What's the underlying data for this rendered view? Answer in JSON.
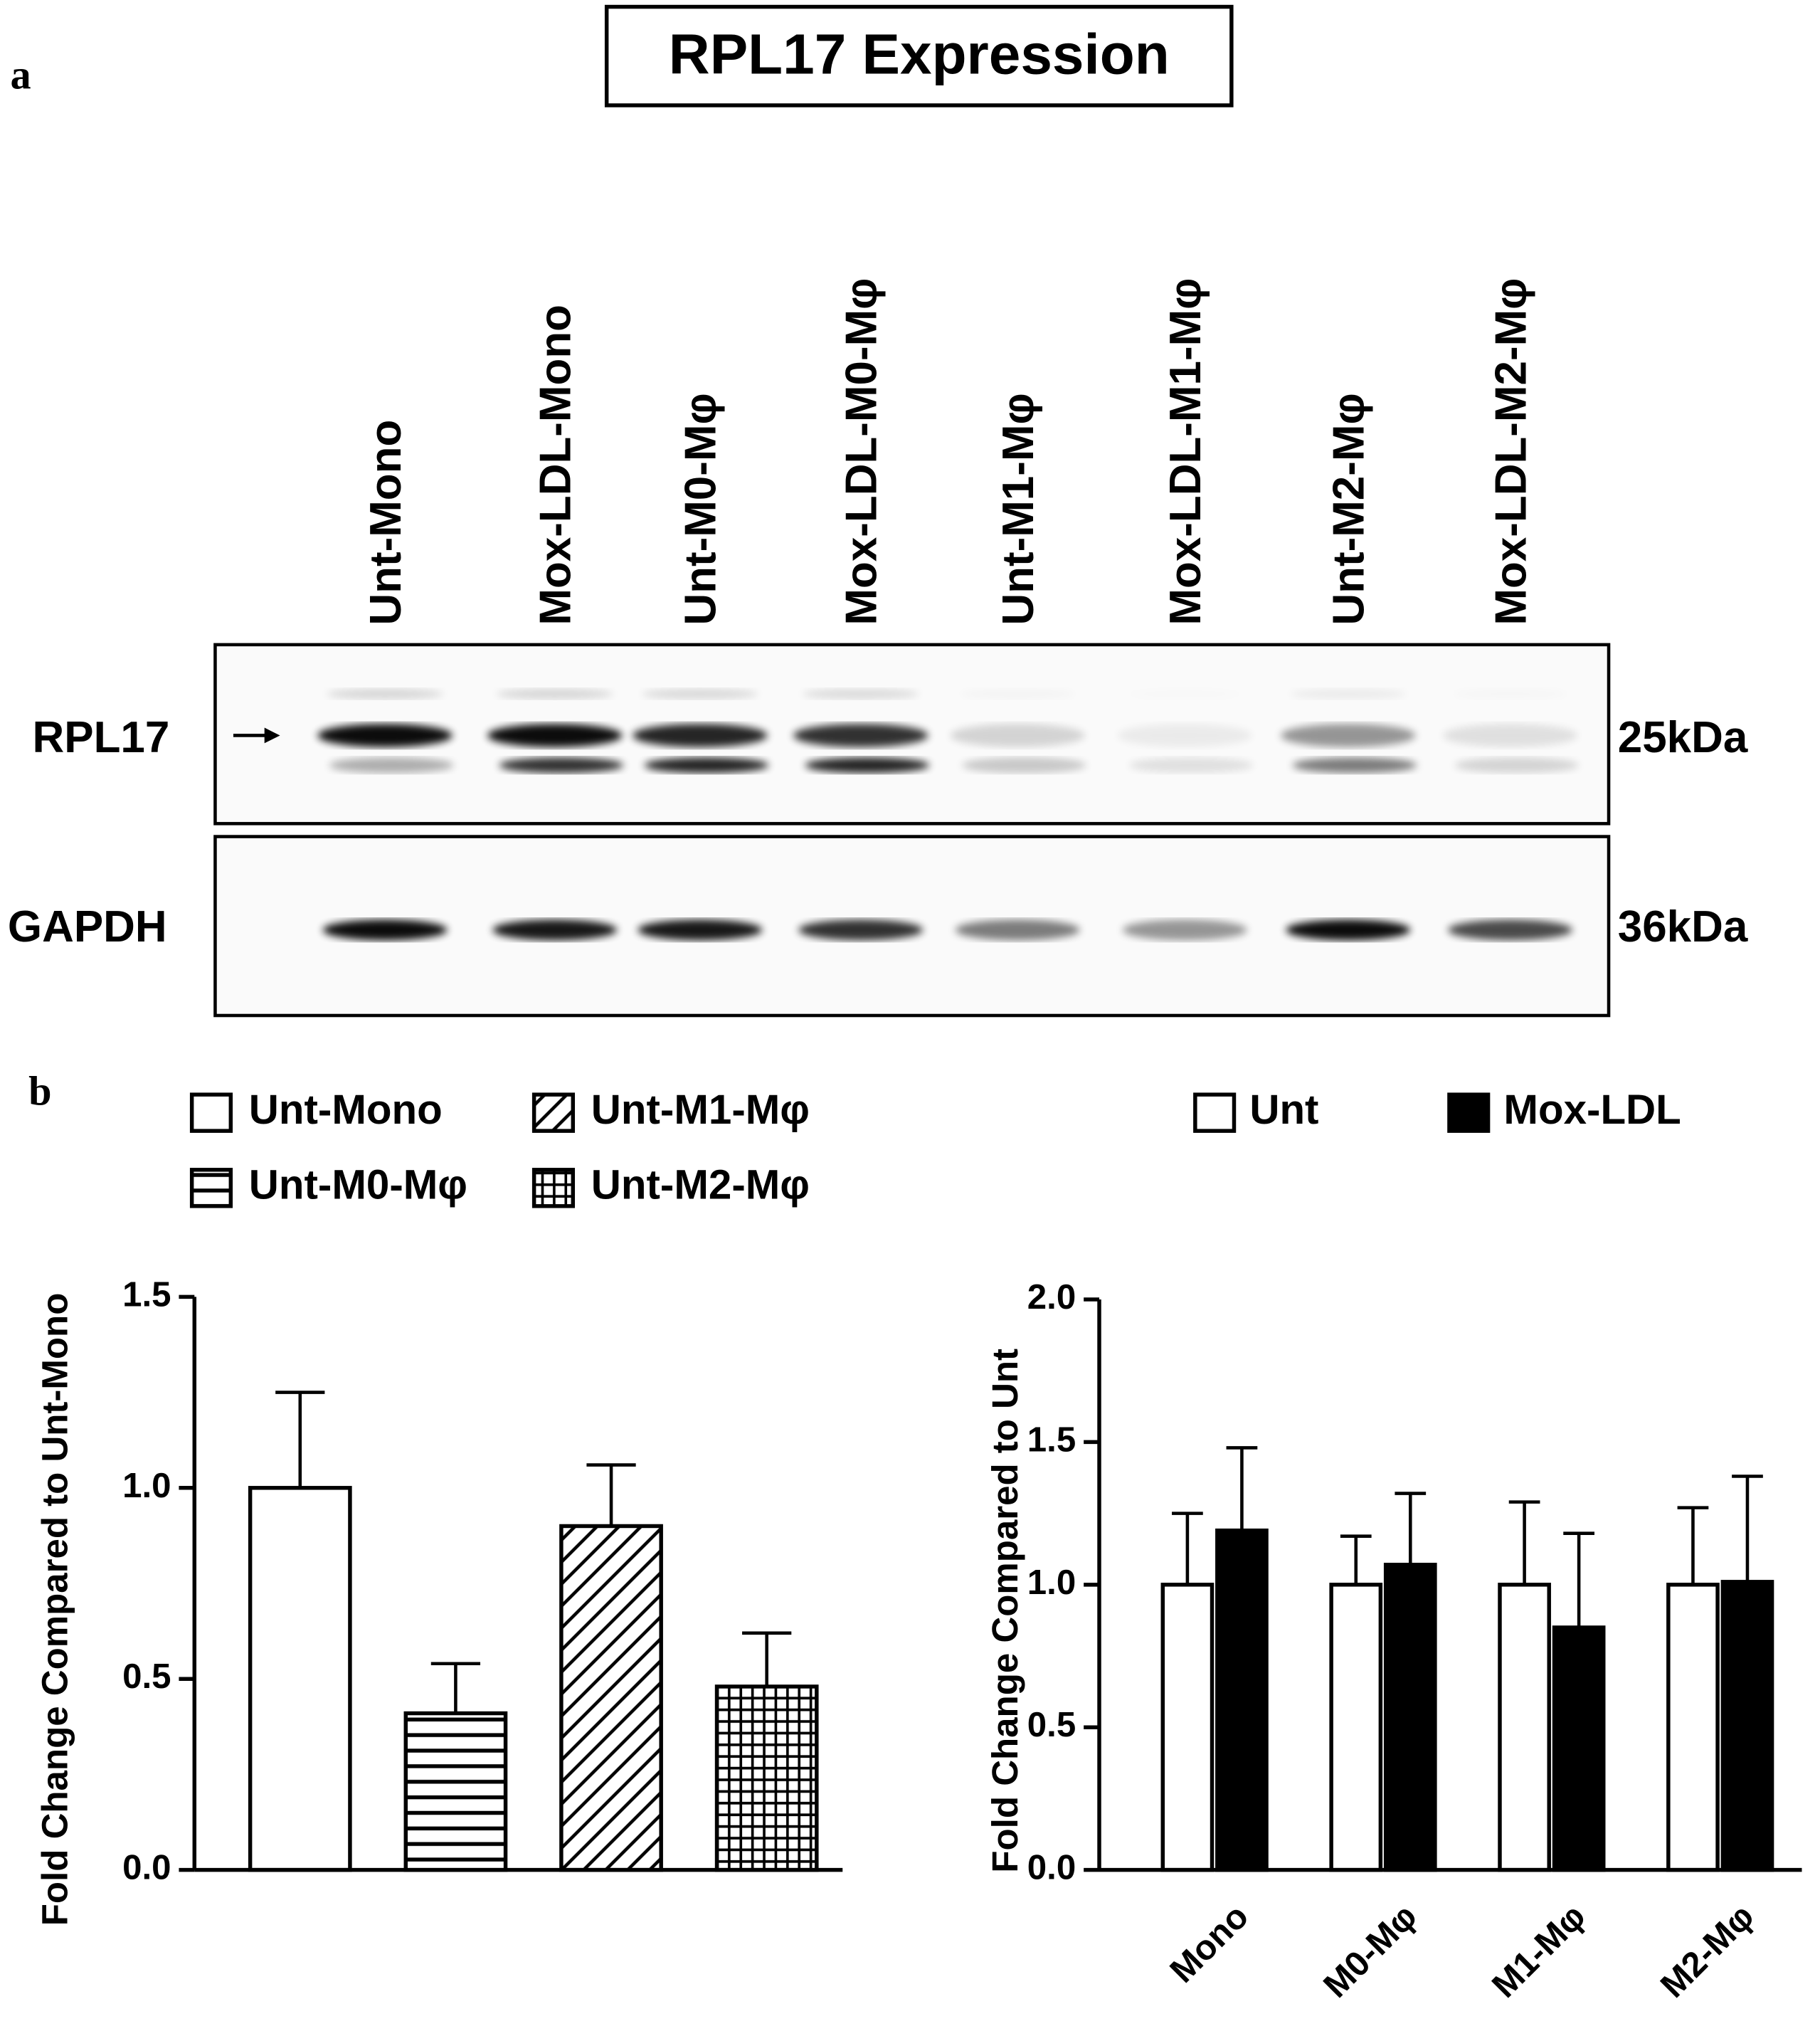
{
  "panel_labels": [
    "a",
    "b"
  ],
  "blot": {
    "title": "RPL17 Expression",
    "lanes": [
      "Unt-Mono",
      "Mox-LDL-Mono",
      "Unt-M0-Mφ",
      "Mox-LDL-M0-Mφ",
      "Unt-M1-Mφ",
      "Mox-LDL-M1-Mφ",
      "Unt-M2-Mφ",
      "Mox-LDL-M2-Mφ"
    ],
    "rows": [
      {
        "label": "RPL17",
        "size": "25kDa"
      },
      {
        "label": "GAPDH",
        "size": "36kDa"
      }
    ]
  },
  "chart_data": [
    {
      "type": "bar",
      "ylabel": "Fold Change Compared to Unt-Mono",
      "categories": [
        "Unt-Mono",
        "Unt-M0-Mφ",
        "Unt-M1-Mφ",
        "Unt-M2-Mφ"
      ],
      "values": [
        1.0,
        0.41,
        0.9,
        0.48
      ],
      "errors": [
        0.25,
        0.13,
        0.16,
        0.14
      ],
      "patterns": [
        "none",
        "horizontal",
        "diagonal",
        "grid"
      ],
      "color": "#000000",
      "ylim": [
        0,
        1.5
      ],
      "yticks": [
        {
          "value": 0,
          "label": "0.0"
        },
        0.5,
        {
          "value": 1,
          "label": "1.0"
        },
        1.5
      ]
    },
    {
      "type": "grouped_bar",
      "ylabel": "Fold Change Compared to Unt",
      "categories": [
        "Mono",
        "M0-Mφ",
        "M1-Mφ",
        "M2-Mφ"
      ],
      "series": [
        {
          "name": "Unt",
          "color": "#ffffff",
          "values": [
            1.0,
            1.0,
            1.0,
            1.0
          ],
          "errors": [
            0.25,
            0.17,
            0.29,
            0.27
          ]
        },
        {
          "name": "Mox-LDL",
          "color": "#000000",
          "values": [
            1.19,
            1.07,
            0.85,
            1.01
          ],
          "errors": [
            0.29,
            0.25,
            0.33,
            0.37
          ]
        }
      ],
      "ylim": [
        0,
        2
      ],
      "yticks": [
        {
          "value": 0,
          "label": "0.0"
        },
        0.5,
        {
          "value": 1,
          "label": "1.0"
        },
        1.5,
        {
          "value": 2,
          "label": "2.0"
        }
      ]
    }
  ]
}
